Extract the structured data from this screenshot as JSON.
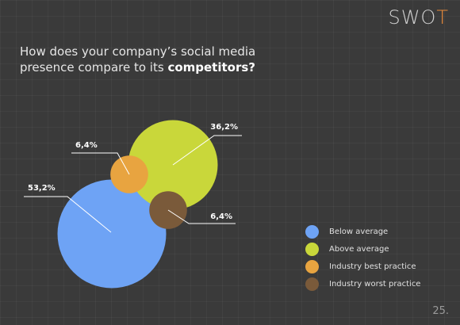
{
  "header": {
    "brand_left": "SWO",
    "brand_right": "T",
    "question_prefix": "How does your company’s social media presence compare to its ",
    "question_bold": "competitors?"
  },
  "page_number": "25.",
  "colors": {
    "below_average": "#6ea3f5",
    "above_average": "#c9d73a",
    "best_practice": "#e8a440",
    "worst_practice": "#7a5a3a"
  },
  "chart_data": {
    "type": "bubble",
    "legend_position": "bottom-right",
    "series": [
      {
        "name": "Below average",
        "value": 53.2,
        "label": "53,2%",
        "color": "#6ea3f5"
      },
      {
        "name": "Above average",
        "value": 36.2,
        "label": "36,2%",
        "color": "#c9d73a"
      },
      {
        "name": "Industry best practice",
        "value": 6.4,
        "label": "6,4%",
        "color": "#e8a440"
      },
      {
        "name": "Industry worst practice",
        "value": 6.4,
        "label": "6,4%",
        "color": "#7a5a3a"
      }
    ]
  }
}
